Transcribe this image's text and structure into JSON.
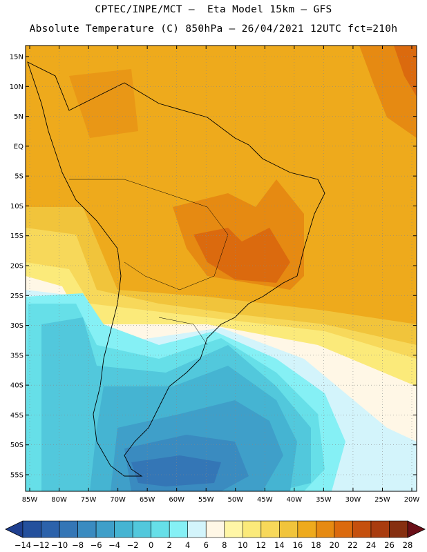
{
  "header": {
    "line1": "CPTEC/INPE/MCT –  Eta Model 15km – GFS",
    "line2": "Absolute Temperature (C) 850hPa – 26/04/2021 12UTC fct=210h"
  },
  "map": {
    "lat_labels": [
      "15N",
      "10N",
      "5N",
      "EQ",
      "5S",
      "10S",
      "15S",
      "20S",
      "25S",
      "30S",
      "35S",
      "40S",
      "45S",
      "50S",
      "55S"
    ],
    "lon_labels": [
      "85W",
      "80W",
      "75W",
      "70W",
      "65W",
      "60W",
      "55W",
      "50W",
      "45W",
      "40W",
      "35W",
      "30W",
      "25W",
      "20W"
    ]
  },
  "colorbar": {
    "labels": [
      "-14",
      "-12",
      "-10",
      "-8",
      "-6",
      "-4",
      "-2",
      "0",
      "2",
      "4",
      "6",
      "8",
      "10",
      "12",
      "14",
      "16",
      "18",
      "20",
      "22",
      "24",
      "26",
      "28"
    ],
    "colors": [
      "#1f3f8f",
      "#24509d",
      "#2c62ab",
      "#3476b6",
      "#3a8bc0",
      "#3f9fc9",
      "#45b4d2",
      "#52c8dc",
      "#66dfe8",
      "#85f0f5",
      "#d3f4fb",
      "#fff7e6",
      "#fff6a6",
      "#fbea7a",
      "#f7d85a",
      "#f1c43b",
      "#eeaa1c",
      "#e68a12",
      "#db6a0e",
      "#c5500e",
      "#a93c0f",
      "#862f10",
      "#6a0f17"
    ]
  }
}
